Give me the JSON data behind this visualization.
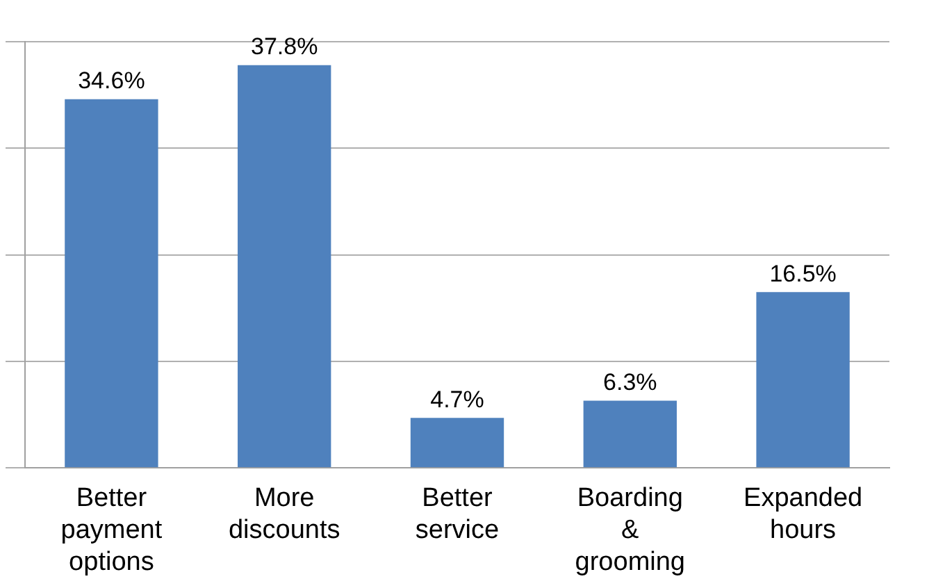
{
  "chart_data": {
    "type": "bar",
    "categories": [
      "Better payment options",
      "More discounts",
      "Better service",
      "Boarding & grooming",
      "Expanded hours"
    ],
    "values": [
      34.6,
      37.8,
      4.7,
      6.3,
      16.5
    ],
    "value_labels": [
      "34.6%",
      "37.8%",
      "4.7%",
      "6.3%",
      "16.5%"
    ],
    "color": "#4f81bd",
    "ylim": [
      0,
      40
    ],
    "yticks": [
      {
        "value": 0,
        "label": null
      },
      {
        "value": 10,
        "label": null
      },
      {
        "value": 20,
        "label": null
      },
      {
        "value": 30,
        "label": null
      },
      {
        "value": 40,
        "label": null
      }
    ],
    "grid": "y",
    "tick_labels": "x",
    "legend": false
  }
}
